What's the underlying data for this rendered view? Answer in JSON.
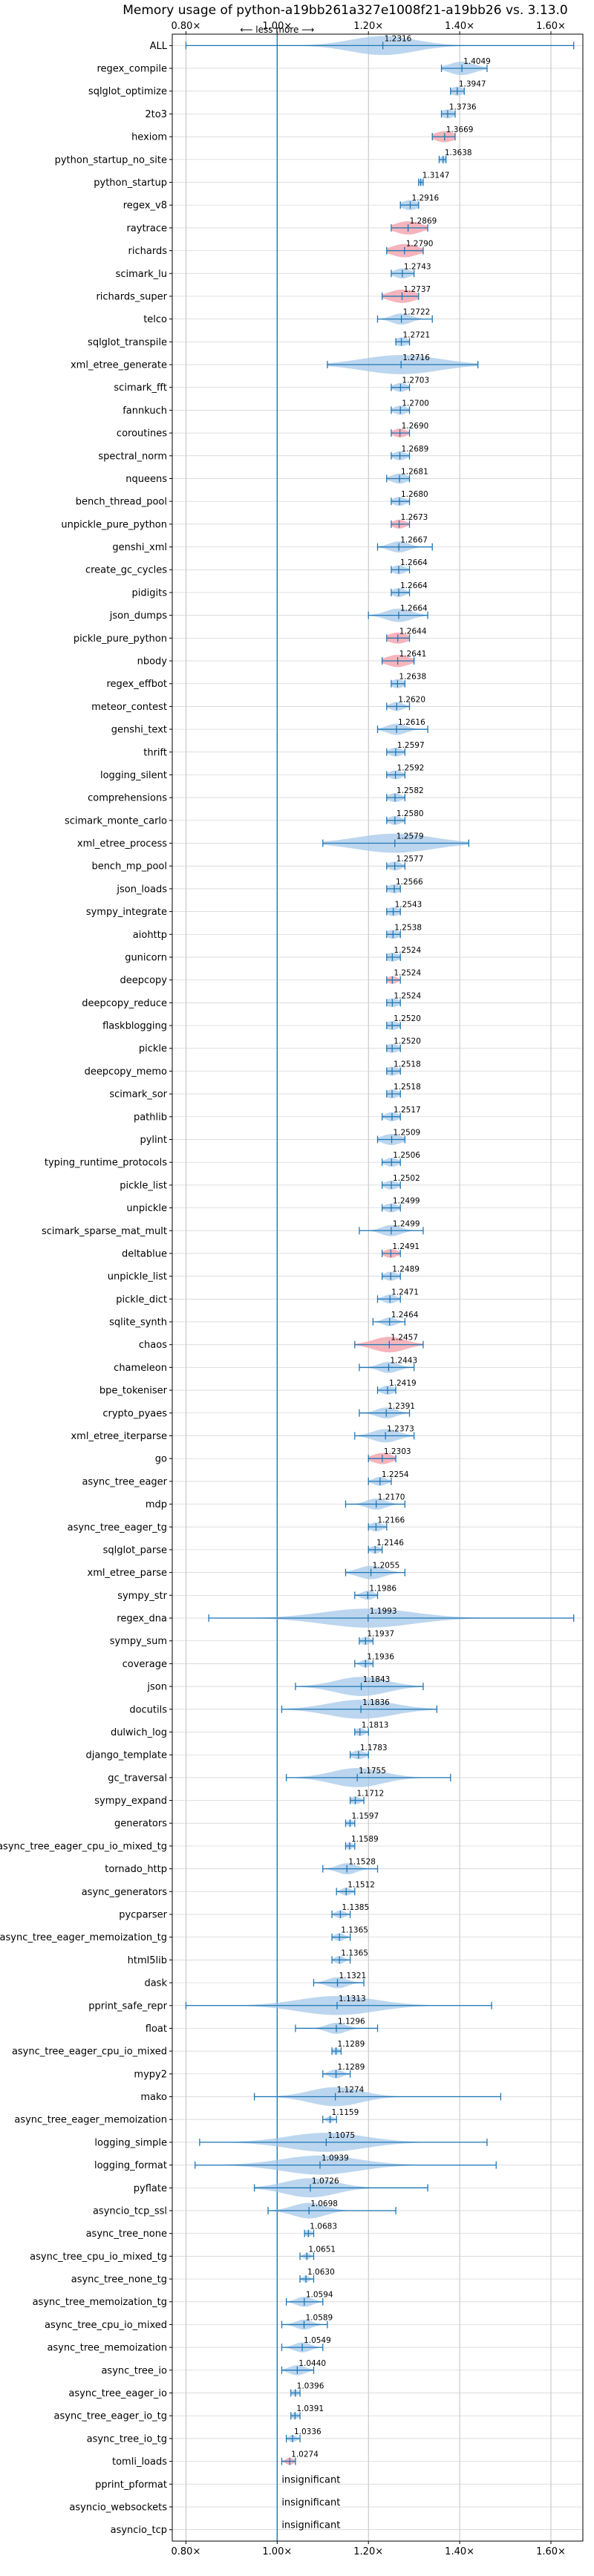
{
  "chart_data": {
    "type": "violin",
    "title": "Memory usage of python-a19bb261a327e1008f21-a19bb26 vs. 3.13.0",
    "xlim": [
      0.77,
      1.67
    ],
    "xticks": [
      "0.80×",
      "1.00×",
      "1.20×",
      "1.40×",
      "1.60×"
    ],
    "xtick_values": [
      0.8,
      1.0,
      1.2,
      1.4,
      1.6
    ],
    "direction_annotation": "⟵ less   more ⟶",
    "reference_line": 1.0,
    "grid": true,
    "colors": {
      "normal": "#9fc5e8",
      "highlight": "#f4a7b0",
      "line": "#1f77b4",
      "refline": "#1f77b4"
    },
    "insignificant_label": "insignificant",
    "benchmarks": [
      {
        "name": "ALL",
        "mean": 1.2316,
        "label": "1.2316",
        "min": 0.8,
        "max": 1.65,
        "spread": 0.1
      },
      {
        "name": "regex_compile",
        "mean": 1.4049,
        "label": "1.4049",
        "min": 1.36,
        "max": 1.46,
        "spread": 0.04
      },
      {
        "name": "sqlglot_optimize",
        "mean": 1.3947,
        "label": "1.3947",
        "min": 1.38,
        "max": 1.41,
        "spread": 0.02
      },
      {
        "name": "2to3",
        "mean": 1.3736,
        "label": "1.3736",
        "min": 1.36,
        "max": 1.39,
        "spread": 0.02
      },
      {
        "name": "hexiom",
        "mean": 1.3669,
        "label": "1.3669",
        "min": 1.34,
        "max": 1.39,
        "spread": 0.03,
        "highlight": true
      },
      {
        "name": "python_startup_no_site",
        "mean": 1.3638,
        "label": "1.3638",
        "min": 1.355,
        "max": 1.37,
        "spread": 0.01
      },
      {
        "name": "python_startup",
        "mean": 1.3147,
        "label": "1.3147",
        "min": 1.31,
        "max": 1.32,
        "spread": 0.008
      },
      {
        "name": "regex_v8",
        "mean": 1.2916,
        "label": "1.2916",
        "min": 1.27,
        "max": 1.31,
        "spread": 0.025
      },
      {
        "name": "raytrace",
        "mean": 1.2869,
        "label": "1.2869",
        "min": 1.25,
        "max": 1.33,
        "spread": 0.04,
        "highlight": true
      },
      {
        "name": "richards",
        "mean": 1.279,
        "label": "1.2790",
        "min": 1.24,
        "max": 1.32,
        "spread": 0.04,
        "highlight": true
      },
      {
        "name": "scimark_lu",
        "mean": 1.2743,
        "label": "1.2743",
        "min": 1.25,
        "max": 1.3,
        "spread": 0.025
      },
      {
        "name": "richards_super",
        "mean": 1.2737,
        "label": "1.2737",
        "min": 1.23,
        "max": 1.31,
        "spread": 0.04,
        "highlight": true
      },
      {
        "name": "telco",
        "mean": 1.2722,
        "label": "1.2722",
        "min": 1.22,
        "max": 1.34,
        "spread": 0.03
      },
      {
        "name": "sqlglot_transpile",
        "mean": 1.2721,
        "label": "1.2721",
        "min": 1.26,
        "max": 1.29,
        "spread": 0.02
      },
      {
        "name": "xml_etree_generate",
        "mean": 1.2716,
        "label": "1.2716",
        "min": 1.11,
        "max": 1.44,
        "spread": 0.12
      },
      {
        "name": "scimark_fft",
        "mean": 1.2703,
        "label": "1.2703",
        "min": 1.25,
        "max": 1.29,
        "spread": 0.02
      },
      {
        "name": "fannkuch",
        "mean": 1.27,
        "label": "1.2700",
        "min": 1.25,
        "max": 1.29,
        "spread": 0.02
      },
      {
        "name": "coroutines",
        "mean": 1.269,
        "label": "1.2690",
        "min": 1.25,
        "max": 1.29,
        "spread": 0.02,
        "highlight": true
      },
      {
        "name": "spectral_norm",
        "mean": 1.2689,
        "label": "1.2689",
        "min": 1.25,
        "max": 1.29,
        "spread": 0.02
      },
      {
        "name": "nqueens",
        "mean": 1.2681,
        "label": "1.2681",
        "min": 1.24,
        "max": 1.29,
        "spread": 0.025
      },
      {
        "name": "bench_thread_pool",
        "mean": 1.268,
        "label": "1.2680",
        "min": 1.25,
        "max": 1.29,
        "spread": 0.02
      },
      {
        "name": "unpickle_pure_python",
        "mean": 1.2673,
        "label": "1.2673",
        "min": 1.25,
        "max": 1.29,
        "spread": 0.02,
        "highlight": true
      },
      {
        "name": "genshi_xml",
        "mean": 1.2667,
        "label": "1.2667",
        "min": 1.22,
        "max": 1.34,
        "spread": 0.03
      },
      {
        "name": "create_gc_cycles",
        "mean": 1.2664,
        "label": "1.2664",
        "min": 1.25,
        "max": 1.29,
        "spread": 0.02
      },
      {
        "name": "pidigits",
        "mean": 1.2664,
        "label": "1.2664",
        "min": 1.25,
        "max": 1.29,
        "spread": 0.02
      },
      {
        "name": "json_dumps",
        "mean": 1.2664,
        "label": "1.2664",
        "min": 1.2,
        "max": 1.33,
        "spread": 0.04
      },
      {
        "name": "pickle_pure_python",
        "mean": 1.2644,
        "label": "1.2644",
        "min": 1.24,
        "max": 1.29,
        "spread": 0.03,
        "highlight": true
      },
      {
        "name": "nbody",
        "mean": 1.2641,
        "label": "1.2641",
        "min": 1.23,
        "max": 1.3,
        "spread": 0.035,
        "highlight": true
      },
      {
        "name": "regex_effbot",
        "mean": 1.2638,
        "label": "1.2638",
        "min": 1.25,
        "max": 1.28,
        "spread": 0.02
      },
      {
        "name": "meteor_contest",
        "mean": 1.262,
        "label": "1.2620",
        "min": 1.24,
        "max": 1.29,
        "spread": 0.02
      },
      {
        "name": "genshi_text",
        "mean": 1.2616,
        "label": "1.2616",
        "min": 1.22,
        "max": 1.33,
        "spread": 0.03
      },
      {
        "name": "thrift",
        "mean": 1.2597,
        "label": "1.2597",
        "min": 1.24,
        "max": 1.28,
        "spread": 0.02
      },
      {
        "name": "logging_silent",
        "mean": 1.2592,
        "label": "1.2592",
        "min": 1.24,
        "max": 1.28,
        "spread": 0.02
      },
      {
        "name": "comprehensions",
        "mean": 1.2582,
        "label": "1.2582",
        "min": 1.24,
        "max": 1.28,
        "spread": 0.02
      },
      {
        "name": "scimark_monte_carlo",
        "mean": 1.258,
        "label": "1.2580",
        "min": 1.24,
        "max": 1.28,
        "spread": 0.02
      },
      {
        "name": "xml_etree_process",
        "mean": 1.2579,
        "label": "1.2579",
        "min": 1.1,
        "max": 1.42,
        "spread": 0.12
      },
      {
        "name": "bench_mp_pool",
        "mean": 1.2577,
        "label": "1.2577",
        "min": 1.24,
        "max": 1.28,
        "spread": 0.02
      },
      {
        "name": "json_loads",
        "mean": 1.2566,
        "label": "1.2566",
        "min": 1.24,
        "max": 1.27,
        "spread": 0.02
      },
      {
        "name": "sympy_integrate",
        "mean": 1.2543,
        "label": "1.2543",
        "min": 1.24,
        "max": 1.27,
        "spread": 0.02
      },
      {
        "name": "aiohttp",
        "mean": 1.2538,
        "label": "1.2538",
        "min": 1.24,
        "max": 1.27,
        "spread": 0.02
      },
      {
        "name": "gunicorn",
        "mean": 1.2524,
        "label": "1.2524",
        "min": 1.24,
        "max": 1.27,
        "spread": 0.02
      },
      {
        "name": "deepcopy",
        "mean": 1.2524,
        "label": "1.2524",
        "min": 1.24,
        "max": 1.27,
        "spread": 0.015,
        "highlight": true
      },
      {
        "name": "deepcopy_reduce",
        "mean": 1.2524,
        "label": "1.2524",
        "min": 1.24,
        "max": 1.27,
        "spread": 0.02
      },
      {
        "name": "flaskblogging",
        "mean": 1.252,
        "label": "1.2520",
        "min": 1.24,
        "max": 1.27,
        "spread": 0.02
      },
      {
        "name": "pickle",
        "mean": 1.252,
        "label": "1.2520",
        "min": 1.24,
        "max": 1.27,
        "spread": 0.02
      },
      {
        "name": "deepcopy_memo",
        "mean": 1.2518,
        "label": "1.2518",
        "min": 1.24,
        "max": 1.27,
        "spread": 0.02
      },
      {
        "name": "scimark_sor",
        "mean": 1.2518,
        "label": "1.2518",
        "min": 1.24,
        "max": 1.27,
        "spread": 0.02
      },
      {
        "name": "pathlib",
        "mean": 1.2517,
        "label": "1.2517",
        "min": 1.23,
        "max": 1.27,
        "spread": 0.02
      },
      {
        "name": "pylint",
        "mean": 1.2509,
        "label": "1.2509",
        "min": 1.22,
        "max": 1.28,
        "spread": 0.03
      },
      {
        "name": "typing_runtime_protocols",
        "mean": 1.2506,
        "label": "1.2506",
        "min": 1.23,
        "max": 1.27,
        "spread": 0.02
      },
      {
        "name": "pickle_list",
        "mean": 1.2502,
        "label": "1.2502",
        "min": 1.23,
        "max": 1.27,
        "spread": 0.02
      },
      {
        "name": "unpickle",
        "mean": 1.2499,
        "label": "1.2499",
        "min": 1.23,
        "max": 1.27,
        "spread": 0.02
      },
      {
        "name": "scimark_sparse_mat_mult",
        "mean": 1.2499,
        "label": "1.2499",
        "min": 1.18,
        "max": 1.32,
        "spread": 0.03
      },
      {
        "name": "deltablue",
        "mean": 1.2491,
        "label": "1.2491",
        "min": 1.23,
        "max": 1.27,
        "spread": 0.02,
        "highlight": true
      },
      {
        "name": "unpickle_list",
        "mean": 1.2489,
        "label": "1.2489",
        "min": 1.23,
        "max": 1.27,
        "spread": 0.02
      },
      {
        "name": "pickle_dict",
        "mean": 1.2471,
        "label": "1.2471",
        "min": 1.22,
        "max": 1.27,
        "spread": 0.02
      },
      {
        "name": "sqlite_synth",
        "mean": 1.2464,
        "label": "1.2464",
        "min": 1.21,
        "max": 1.28,
        "spread": 0.02
      },
      {
        "name": "chaos",
        "mean": 1.2457,
        "label": "1.2457",
        "min": 1.17,
        "max": 1.32,
        "spread": 0.05,
        "highlight": true
      },
      {
        "name": "chameleon",
        "mean": 1.2443,
        "label": "1.2443",
        "min": 1.18,
        "max": 1.3,
        "spread": 0.03
      },
      {
        "name": "bpe_tokeniser",
        "mean": 1.2419,
        "label": "1.2419",
        "min": 1.22,
        "max": 1.26,
        "spread": 0.02
      },
      {
        "name": "crypto_pyaes",
        "mean": 1.2391,
        "label": "1.2391",
        "min": 1.18,
        "max": 1.29,
        "spread": 0.03
      },
      {
        "name": "xml_etree_iterparse",
        "mean": 1.2373,
        "label": "1.2373",
        "min": 1.17,
        "max": 1.3,
        "spread": 0.04
      },
      {
        "name": "go",
        "mean": 1.2303,
        "label": "1.2303",
        "min": 1.2,
        "max": 1.26,
        "spread": 0.03,
        "highlight": true
      },
      {
        "name": "async_tree_eager",
        "mean": 1.2254,
        "label": "1.2254",
        "min": 1.2,
        "max": 1.25,
        "spread": 0.02
      },
      {
        "name": "mdp",
        "mean": 1.217,
        "label": "1.2170",
        "min": 1.15,
        "max": 1.28,
        "spread": 0.03
      },
      {
        "name": "async_tree_eager_tg",
        "mean": 1.2166,
        "label": "1.2166",
        "min": 1.2,
        "max": 1.24,
        "spread": 0.02
      },
      {
        "name": "sqlglot_parse",
        "mean": 1.2146,
        "label": "1.2146",
        "min": 1.2,
        "max": 1.23,
        "spread": 0.015
      },
      {
        "name": "xml_etree_parse",
        "mean": 1.2055,
        "label": "1.2055",
        "min": 1.15,
        "max": 1.28,
        "spread": 0.04
      },
      {
        "name": "sympy_str",
        "mean": 1.1986,
        "label": "1.1986",
        "min": 1.17,
        "max": 1.22,
        "spread": 0.02
      },
      {
        "name": "regex_dna",
        "mean": 1.1993,
        "label": "1.1993",
        "min": 0.85,
        "max": 1.65,
        "spread": 0.14
      },
      {
        "name": "sympy_sum",
        "mean": 1.1937,
        "label": "1.1937",
        "min": 1.18,
        "max": 1.21,
        "spread": 0.015
      },
      {
        "name": "coverage",
        "mean": 1.1936,
        "label": "1.1936",
        "min": 1.17,
        "max": 1.21,
        "spread": 0.015
      },
      {
        "name": "json",
        "mean": 1.1843,
        "label": "1.1843",
        "min": 1.04,
        "max": 1.32,
        "spread": 0.08
      },
      {
        "name": "docutils",
        "mean": 1.1836,
        "label": "1.1836",
        "min": 1.01,
        "max": 1.35,
        "spread": 0.1
      },
      {
        "name": "dulwich_log",
        "mean": 1.1813,
        "label": "1.1813",
        "min": 1.17,
        "max": 1.2,
        "spread": 0.015
      },
      {
        "name": "django_template",
        "mean": 1.1783,
        "label": "1.1783",
        "min": 1.16,
        "max": 1.2,
        "spread": 0.02
      },
      {
        "name": "gc_traversal",
        "mean": 1.1755,
        "label": "1.1755",
        "min": 1.02,
        "max": 1.38,
        "spread": 0.08
      },
      {
        "name": "sympy_expand",
        "mean": 1.1712,
        "label": "1.1712",
        "min": 1.16,
        "max": 1.19,
        "spread": 0.015
      },
      {
        "name": "generators",
        "mean": 1.1597,
        "label": "1.1597",
        "min": 1.15,
        "max": 1.17,
        "spread": 0.01
      },
      {
        "name": "async_tree_eager_cpu_io_mixed_tg",
        "mean": 1.1589,
        "label": "1.1589",
        "min": 1.15,
        "max": 1.17,
        "spread": 0.01
      },
      {
        "name": "tornado_http",
        "mean": 1.1528,
        "label": "1.1528",
        "min": 1.1,
        "max": 1.22,
        "spread": 0.03
      },
      {
        "name": "async_generators",
        "mean": 1.1512,
        "label": "1.1512",
        "min": 1.13,
        "max": 1.17,
        "spread": 0.015
      },
      {
        "name": "pycparser",
        "mean": 1.1385,
        "label": "1.1385",
        "min": 1.12,
        "max": 1.16,
        "spread": 0.015
      },
      {
        "name": "async_tree_eager_memoization_tg",
        "mean": 1.1365,
        "label": "1.1365",
        "min": 1.12,
        "max": 1.16,
        "spread": 0.015
      },
      {
        "name": "html5lib",
        "mean": 1.1365,
        "label": "1.1365",
        "min": 1.12,
        "max": 1.16,
        "spread": 0.015
      },
      {
        "name": "dask",
        "mean": 1.1321,
        "label": "1.1321",
        "min": 1.08,
        "max": 1.19,
        "spread": 0.03
      },
      {
        "name": "pprint_safe_repr",
        "mean": 1.1313,
        "label": "1.1313",
        "min": 0.8,
        "max": 1.47,
        "spread": 0.12
      },
      {
        "name": "float",
        "mean": 1.1296,
        "label": "1.1296",
        "min": 1.04,
        "max": 1.22,
        "spread": 0.03
      },
      {
        "name": "async_tree_eager_cpu_io_mixed",
        "mean": 1.1289,
        "label": "1.1289",
        "min": 1.12,
        "max": 1.14,
        "spread": 0.01
      },
      {
        "name": "mypy2",
        "mean": 1.1289,
        "label": "1.1289",
        "min": 1.1,
        "max": 1.16,
        "spread": 0.02
      },
      {
        "name": "mako",
        "mean": 1.1274,
        "label": "1.1274",
        "min": 0.95,
        "max": 1.49,
        "spread": 0.08
      },
      {
        "name": "async_tree_eager_memoization",
        "mean": 1.1159,
        "label": "1.1159",
        "min": 1.1,
        "max": 1.13,
        "spread": 0.01
      },
      {
        "name": "logging_simple",
        "mean": 1.1075,
        "label": "1.1075",
        "min": 0.83,
        "max": 1.46,
        "spread": 0.12
      },
      {
        "name": "logging_format",
        "mean": 1.0939,
        "label": "1.0939",
        "min": 0.82,
        "max": 1.48,
        "spread": 0.12
      },
      {
        "name": "pyflate",
        "mean": 1.0726,
        "label": "1.0726",
        "min": 0.95,
        "max": 1.33,
        "spread": 0.08
      },
      {
        "name": "asyncio_tcp_ssl",
        "mean": 1.0698,
        "label": "1.0698",
        "min": 0.98,
        "max": 1.26,
        "spread": 0.05
      },
      {
        "name": "async_tree_none",
        "mean": 1.0683,
        "label": "1.0683",
        "min": 1.06,
        "max": 1.08,
        "spread": 0.01
      },
      {
        "name": "async_tree_cpu_io_mixed_tg",
        "mean": 1.0651,
        "label": "1.0651",
        "min": 1.05,
        "max": 1.08,
        "spread": 0.01
      },
      {
        "name": "async_tree_none_tg",
        "mean": 1.063,
        "label": "1.0630",
        "min": 1.05,
        "max": 1.08,
        "spread": 0.01
      },
      {
        "name": "async_tree_memoization_tg",
        "mean": 1.0594,
        "label": "1.0594",
        "min": 1.02,
        "max": 1.1,
        "spread": 0.025
      },
      {
        "name": "async_tree_cpu_io_mixed",
        "mean": 1.0589,
        "label": "1.0589",
        "min": 1.01,
        "max": 1.11,
        "spread": 0.025
      },
      {
        "name": "async_tree_memoization",
        "mean": 1.0549,
        "label": "1.0549",
        "min": 1.01,
        "max": 1.1,
        "spread": 0.025
      },
      {
        "name": "async_tree_io",
        "mean": 1.044,
        "label": "1.0440",
        "min": 1.01,
        "max": 1.08,
        "spread": 0.025
      },
      {
        "name": "async_tree_eager_io",
        "mean": 1.0396,
        "label": "1.0396",
        "min": 1.03,
        "max": 1.05,
        "spread": 0.01
      },
      {
        "name": "async_tree_eager_io_tg",
        "mean": 1.0391,
        "label": "1.0391",
        "min": 1.03,
        "max": 1.05,
        "spread": 0.01
      },
      {
        "name": "async_tree_io_tg",
        "mean": 1.0336,
        "label": "1.0336",
        "min": 1.02,
        "max": 1.05,
        "spread": 0.012
      },
      {
        "name": "tomli_loads",
        "mean": 1.0274,
        "label": "1.0274",
        "min": 1.01,
        "max": 1.04,
        "spread": 0.012,
        "highlight": true
      },
      {
        "name": "pprint_pformat",
        "insignificant": true
      },
      {
        "name": "asyncio_websockets",
        "insignificant": true
      },
      {
        "name": "asyncio_tcp",
        "insignificant": true
      }
    ]
  }
}
